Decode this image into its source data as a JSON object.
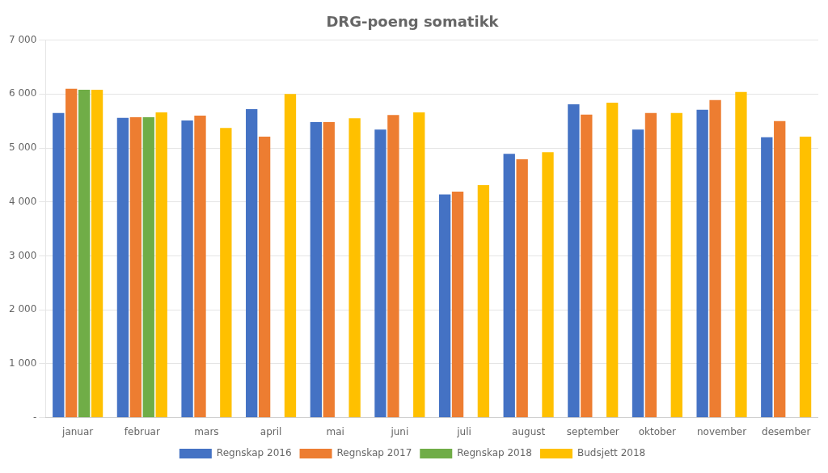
{
  "chart_data": {
    "type": "bar",
    "title": "DRG-poeng somatikk",
    "categories": [
      "januar",
      "februar",
      "mars",
      "april",
      "mai",
      "juni",
      "juli",
      "august",
      "september",
      "oktober",
      "november",
      "desember"
    ],
    "series": [
      {
        "name": "Regnskap 2016",
        "color": "#4472C4",
        "values": [
          5650,
          5560,
          5510,
          5720,
          5480,
          5340,
          4140,
          4890,
          5810,
          5340,
          5710,
          5200
        ]
      },
      {
        "name": "Regnskap 2017",
        "color": "#ED7D31",
        "values": [
          6100,
          5570,
          5600,
          5210,
          5480,
          5610,
          4190,
          4790,
          5620,
          5650,
          5890,
          5500
        ]
      },
      {
        "name": "Regnskap 2018",
        "color": "#70AD47",
        "values": [
          6080,
          5570,
          null,
          null,
          null,
          null,
          null,
          null,
          null,
          null,
          null,
          null
        ]
      },
      {
        "name": "Budsjett 2018",
        "color": "#FFC000",
        "values": [
          6080,
          5660,
          5370,
          6000,
          5550,
          5660,
          4310,
          4920,
          5840,
          5650,
          6040,
          5210
        ]
      }
    ],
    "ylim": [
      0,
      7000
    ],
    "yticks": [
      {
        "value": 0,
        "label": "-"
      },
      {
        "value": 1000,
        "label": "1 000"
      },
      {
        "value": 2000,
        "label": "2 000"
      },
      {
        "value": 3000,
        "label": "3 000"
      },
      {
        "value": 4000,
        "label": "4 000"
      },
      {
        "value": 5000,
        "label": "5 000"
      },
      {
        "value": 6000,
        "label": "6 000"
      },
      {
        "value": 7000,
        "label": "7 000"
      }
    ],
    "grid": true,
    "legend": "bottom"
  }
}
